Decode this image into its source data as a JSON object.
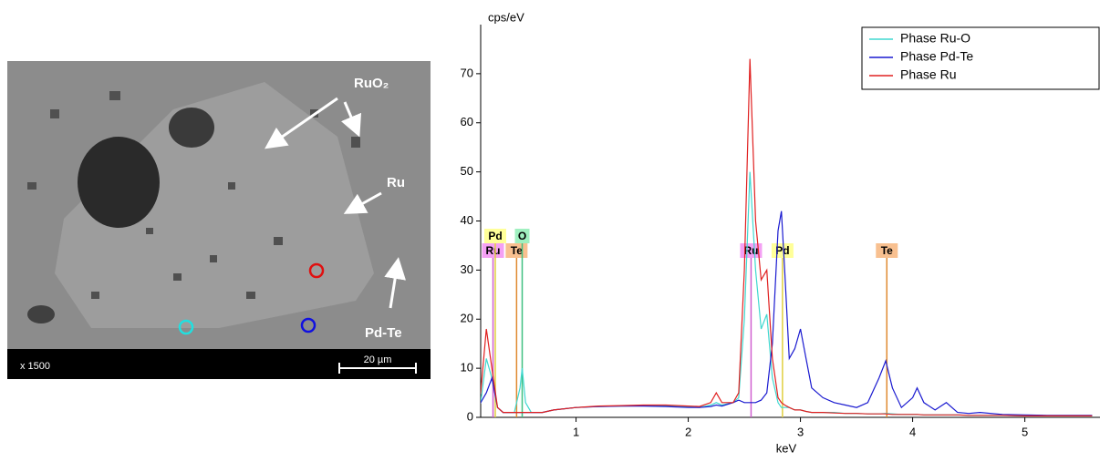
{
  "sem": {
    "labels": [
      "RuO₂",
      "Ru",
      "Pd-Te"
    ],
    "magnification": "x 1500",
    "scale_bar": "20 µm"
  },
  "chart_data": {
    "type": "line",
    "ylabel": "cps/eV",
    "xlabel": "keV",
    "xlim": [
      0.15,
      5.67
    ],
    "ylim": [
      0,
      80
    ],
    "xticks": [
      1,
      2,
      3,
      4,
      5
    ],
    "yticks": [
      0,
      10,
      20,
      30,
      40,
      50,
      60,
      70
    ],
    "legend": "upper right",
    "x": [
      0.1,
      0.15,
      0.2,
      0.25,
      0.3,
      0.35,
      0.4,
      0.45,
      0.5,
      0.52,
      0.55,
      0.6,
      0.7,
      0.8,
      1.0,
      1.2,
      1.4,
      1.6,
      1.8,
      2.0,
      2.1,
      2.2,
      2.25,
      2.3,
      2.4,
      2.45,
      2.5,
      2.55,
      2.6,
      2.65,
      2.7,
      2.75,
      2.8,
      2.83,
      2.86,
      2.9,
      2.95,
      3.0,
      3.05,
      3.1,
      3.2,
      3.3,
      3.4,
      3.5,
      3.6,
      3.7,
      3.76,
      3.82,
      3.9,
      4.0,
      4.04,
      4.1,
      4.2,
      4.3,
      4.4,
      4.5,
      4.6,
      4.8,
      5.0,
      5.2,
      5.4,
      5.6
    ],
    "series": [
      {
        "name": "Phase Ru-O",
        "color": "#40d8d0",
        "values": [
          1,
          3,
          12,
          8,
          2,
          1,
          1,
          1,
          6,
          10,
          3,
          1,
          1,
          1.5,
          2,
          2.2,
          2.3,
          2.4,
          2.4,
          2.2,
          2,
          2.5,
          3,
          2.5,
          3,
          4,
          20,
          50,
          30,
          18,
          21,
          8,
          3,
          2,
          2,
          2,
          1.5,
          1.5,
          1.2,
          1,
          1,
          1,
          0.8,
          0.8,
          0.7,
          0.7,
          0.8,
          0.7,
          0.6,
          0.6,
          0.6,
          0.5,
          0.5,
          0.5,
          0.5,
          0.4,
          0.4,
          0.4,
          0.3,
          0.3,
          0.3,
          0.3
        ]
      },
      {
        "name": "Phase Pd-Te",
        "color": "#1a1ad0",
        "values": [
          1,
          3,
          5,
          8,
          2,
          1,
          1,
          1,
          1,
          1,
          1,
          1,
          1,
          1.5,
          2,
          2.2,
          2.3,
          2.3,
          2.2,
          2,
          2,
          2.2,
          2.5,
          2.3,
          3,
          3.5,
          3,
          3,
          3,
          3.5,
          5,
          15,
          38,
          42,
          30,
          12,
          14,
          18,
          12,
          6,
          4,
          3,
          2.5,
          2,
          3,
          8,
          11.5,
          6,
          2,
          4,
          6,
          3,
          1.5,
          3,
          1,
          0.8,
          1,
          0.6,
          0.5,
          0.4,
          0.4,
          0.4
        ]
      },
      {
        "name": "Phase Ru",
        "color": "#e02020",
        "values": [
          1,
          5,
          18,
          10,
          2,
          1,
          1,
          1,
          1,
          1,
          1,
          1,
          1,
          1.5,
          2,
          2.3,
          2.4,
          2.5,
          2.5,
          2.3,
          2.2,
          3,
          5,
          3,
          3,
          5,
          30,
          73,
          40,
          28,
          30,
          12,
          4,
          3,
          2.5,
          2,
          1.5,
          1.5,
          1.2,
          1,
          1,
          0.9,
          0.8,
          0.8,
          0.7,
          0.7,
          0.7,
          0.6,
          0.6,
          0.6,
          0.6,
          0.5,
          0.5,
          0.5,
          0.5,
          0.4,
          0.4,
          0.4,
          0.3,
          0.3,
          0.3,
          0.3
        ]
      }
    ],
    "markers": [
      {
        "label": "Ru",
        "x": 0.26,
        "color": "#d060d0",
        "fill": "#f4a0f4"
      },
      {
        "label": "Pd",
        "x": 0.28,
        "color": "#e0d040",
        "fill": "#ffff99"
      },
      {
        "label": "Te",
        "x": 0.47,
        "color": "#e08a30",
        "fill": "#f8c090"
      },
      {
        "label": "O",
        "x": 0.52,
        "color": "#40c080",
        "fill": "#a0f0c0"
      },
      {
        "label": "Ru",
        "x": 2.56,
        "color": "#d060d0",
        "fill": "#f4a0f4"
      },
      {
        "label": "Pd",
        "x": 2.84,
        "color": "#e0d040",
        "fill": "#ffff99"
      },
      {
        "label": "Te",
        "x": 3.77,
        "color": "#e08a30",
        "fill": "#f8c090"
      }
    ]
  }
}
